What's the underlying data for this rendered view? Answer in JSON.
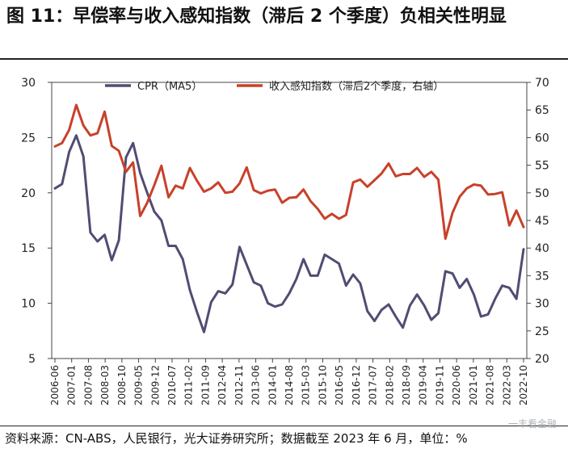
{
  "title": "图 11：早偿率与收入感知指数（滞后 2 个季度）负相关性明显",
  "source": "资料来源：CN-ABS，人民银行，光大证券研究所；数据截至 2023 年 6 月，单位：%",
  "watermark": "一丰看金融",
  "chart_data": {
    "type": "line",
    "y_left": {
      "ticks": [
        5,
        10,
        15,
        20,
        25,
        30
      ],
      "lim": [
        5,
        30
      ]
    },
    "y_right": {
      "ticks": [
        20,
        25,
        30,
        35,
        40,
        45,
        50,
        55,
        60,
        65,
        70
      ],
      "lim": [
        20,
        70
      ]
    },
    "x_tick_labels": [
      "2006-06",
      "2007-01",
      "2007-08",
      "2008-03",
      "2008-10",
      "2009-05",
      "2009-12",
      "2010-07",
      "2011-02",
      "2011-09",
      "2012-04",
      "2012-11",
      "2013-06",
      "2014-01",
      "2014-08",
      "2015-03",
      "2015-10",
      "2016-05",
      "2016-12",
      "2017-07",
      "2018-02",
      "2018-09",
      "2019-04",
      "2019-11",
      "2020-06",
      "2021-01",
      "2021-08",
      "2022-03",
      "2022-10"
    ],
    "legend_position": "top-center",
    "series": [
      {
        "name": "CPR（MA5）",
        "axis": "left",
        "color": "#4f4d73",
        "values": [
          20.4,
          20.8,
          23.7,
          25.2,
          23.3,
          16.4,
          15.6,
          16.2,
          13.9,
          15.7,
          23.2,
          24.5,
          21.8,
          20.0,
          18.3,
          17.5,
          15.2,
          15.2,
          14.0,
          11.2,
          9.2,
          7.4,
          10.1,
          11.1,
          10.9,
          11.7,
          15.1,
          13.5,
          11.9,
          11.6,
          10.0,
          9.7,
          9.9,
          10.9,
          12.2,
          14.0,
          12.5,
          12.5,
          14.4,
          14.0,
          13.6,
          11.6,
          12.6,
          11.8,
          9.3,
          8.4,
          9.4,
          9.9,
          8.8,
          7.8,
          9.8,
          10.8,
          9.8,
          8.5,
          9.1,
          12.9,
          12.7,
          11.4,
          12.2,
          10.8,
          8.8,
          9.0,
          10.4,
          11.6,
          11.4,
          10.4,
          14.9
        ]
      },
      {
        "name": "收入感知指数（滞后2个季度，右轴）",
        "axis": "right",
        "color": "#c8412a",
        "values": [
          58.4,
          59.0,
          61.4,
          65.9,
          62.2,
          60.4,
          60.8,
          64.7,
          58.5,
          57.6,
          53.8,
          55.5,
          45.8,
          48.2,
          51.4,
          54.9,
          49.2,
          51.3,
          50.8,
          54.5,
          52.2,
          50.2,
          50.8,
          51.9,
          50.0,
          50.2,
          51.7,
          54.6,
          50.5,
          49.9,
          50.4,
          50.6,
          48.2,
          49.1,
          49.2,
          50.6,
          48.5,
          47.1,
          45.3,
          46.2,
          45.3,
          46.0,
          51.9,
          52.4,
          51.1,
          52.3,
          53.5,
          55.3,
          53.0,
          53.4,
          53.4,
          54.5,
          52.9,
          53.8,
          52.4,
          41.7,
          46.4,
          49.3,
          50.8,
          51.5,
          51.3,
          49.7,
          49.8,
          50.1,
          44.1,
          46.8,
          43.8
        ]
      }
    ]
  }
}
